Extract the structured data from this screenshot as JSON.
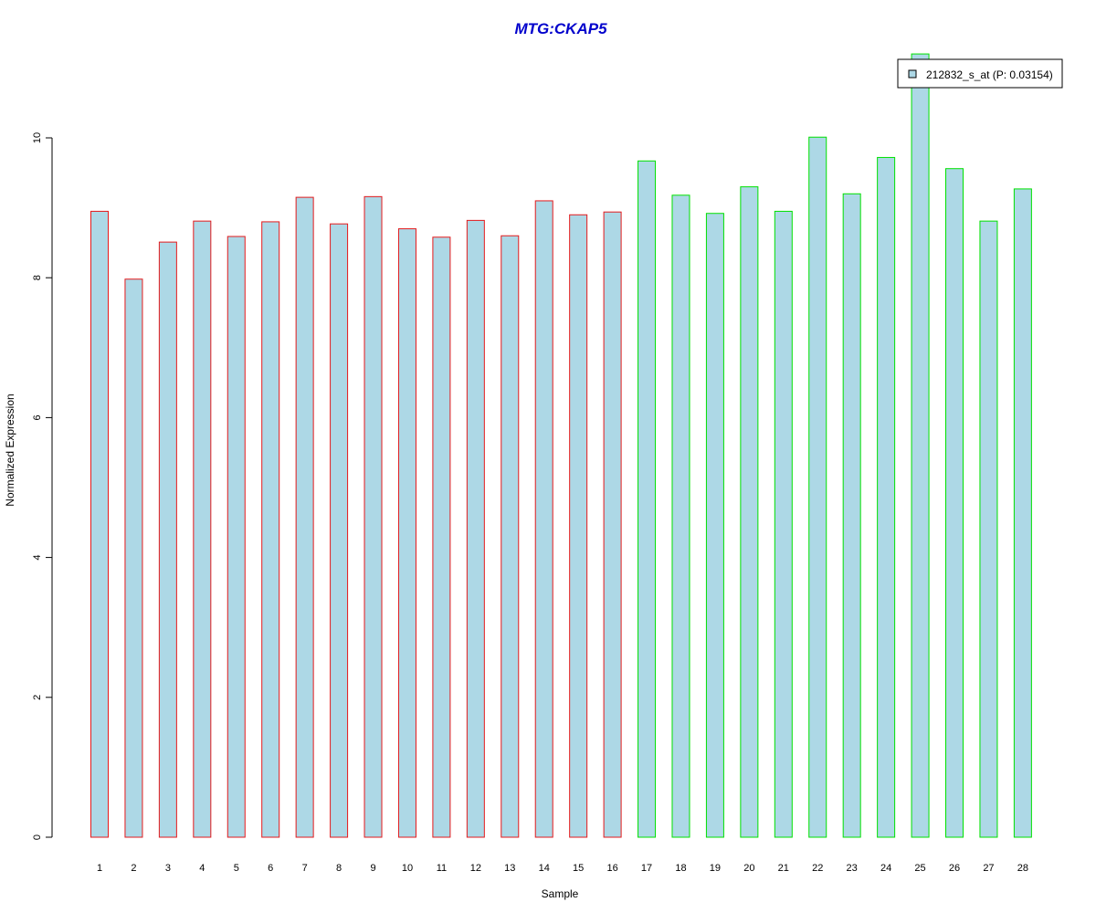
{
  "chart_data": {
    "type": "bar",
    "title": "MTG:CKAP5",
    "xlabel": "Sample",
    "ylabel": "Normalized Expression",
    "categories": [
      "1",
      "2",
      "3",
      "4",
      "5",
      "6",
      "7",
      "8",
      "9",
      "10",
      "11",
      "12",
      "13",
      "14",
      "15",
      "16",
      "17",
      "18",
      "19",
      "20",
      "21",
      "22",
      "23",
      "24",
      "25",
      "26",
      "27",
      "28"
    ],
    "values": [
      8.95,
      7.98,
      8.51,
      8.81,
      8.59,
      8.8,
      9.15,
      8.77,
      9.16,
      8.7,
      8.58,
      8.82,
      8.6,
      9.1,
      8.9,
      8.94,
      9.67,
      9.18,
      8.92,
      9.3,
      8.95,
      10.01,
      9.2,
      9.72,
      11.2,
      9.56,
      8.81,
      9.27
    ],
    "groups": [
      1,
      1,
      1,
      1,
      1,
      1,
      1,
      1,
      1,
      1,
      1,
      1,
      1,
      1,
      1,
      1,
      2,
      2,
      2,
      2,
      2,
      2,
      2,
      2,
      2,
      2,
      2,
      2
    ],
    "yticks": [
      0,
      2,
      4,
      6,
      8,
      10
    ],
    "ylim": [
      0,
      11.2
    ],
    "grid": false,
    "legend": {
      "entries": [
        {
          "label": "212832_s_at (P: 0.03154)",
          "color": "#add8e6"
        }
      ],
      "placement": "top-right"
    },
    "colors": {
      "fill": "#add8e6",
      "group1_border": "#e41a1c",
      "group2_border": "#00e000",
      "title": "#0000cc"
    }
  }
}
